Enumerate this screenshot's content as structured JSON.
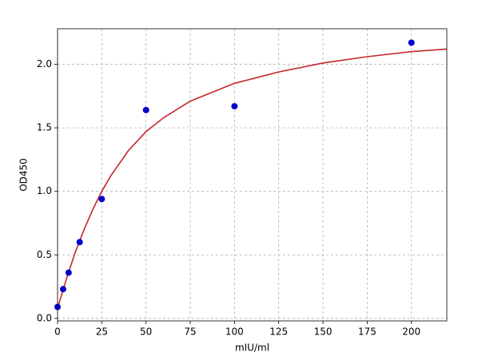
{
  "chart_data": {
    "type": "scatter",
    "x_label": "mIU/ml",
    "y_label": "OD450",
    "xlim": [
      0,
      220
    ],
    "ylim": [
      -0.02,
      2.28
    ],
    "xticks": [
      0,
      25,
      50,
      75,
      100,
      125,
      150,
      175,
      200
    ],
    "yticks": [
      {
        "value": 0,
        "label": "0.0"
      },
      {
        "value": 0.5,
        "label": "0.5"
      },
      {
        "value": 1,
        "label": "1.0"
      },
      {
        "value": 1.5,
        "label": "1.5"
      },
      {
        "value": 2,
        "label": "2.0"
      }
    ],
    "grid": true,
    "series": [
      {
        "type": "line",
        "color": "#c4262b",
        "x": [
          0,
          5,
          10,
          15,
          20,
          25,
          30,
          40,
          50,
          60,
          75,
          100,
          125,
          150,
          175,
          200,
          220
        ],
        "values": [
          0.08,
          0.31,
          0.52,
          0.7,
          0.86,
          1.0,
          1.12,
          1.32,
          1.47,
          1.58,
          1.71,
          1.85,
          1.94,
          2.01,
          2.06,
          2.1,
          2.12
        ]
      },
      {
        "type": "scatter",
        "color": "#0000cc",
        "x": [
          0,
          3.125,
          6.25,
          12.5,
          25,
          50,
          100,
          200
        ],
        "values": [
          0.09,
          0.23,
          0.36,
          0.6,
          0.94,
          1.64,
          1.67,
          2.17
        ]
      }
    ]
  }
}
